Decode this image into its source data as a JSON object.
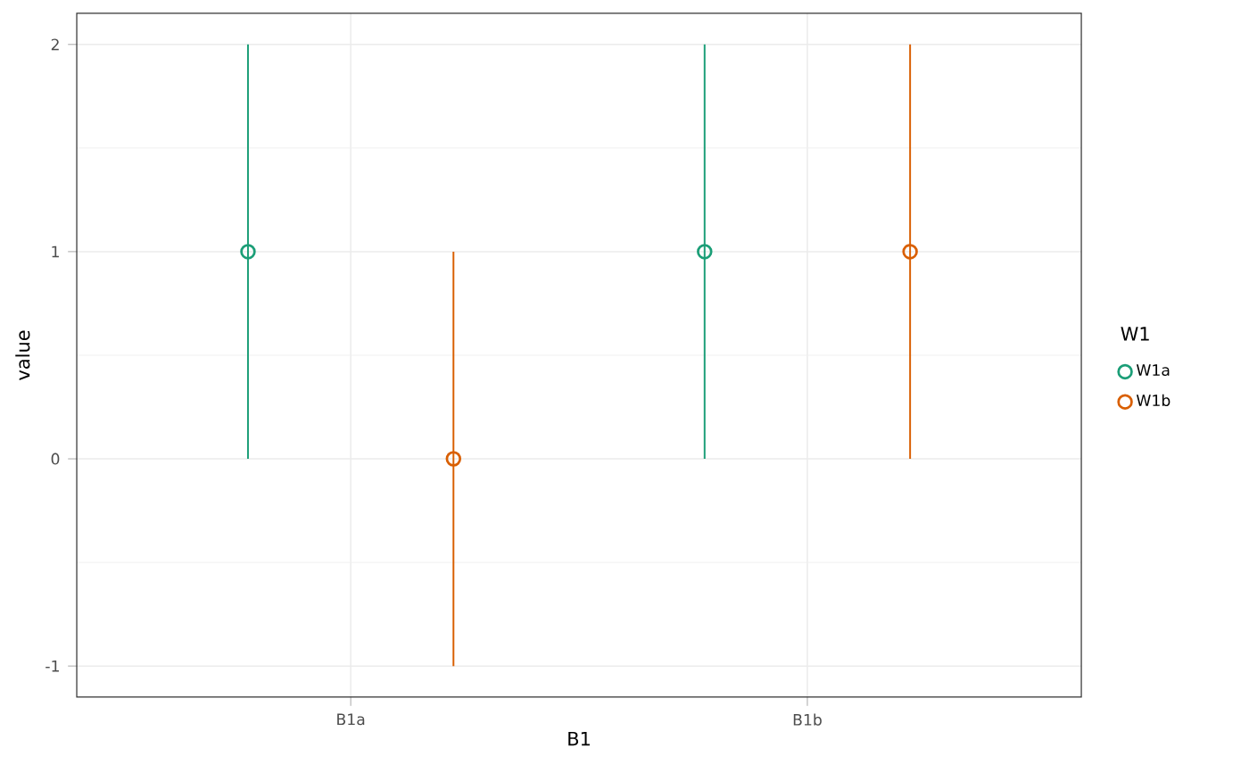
{
  "chart_data": {
    "type": "scatter",
    "xlabel": "B1",
    "ylabel": "value",
    "legend_title": "W1",
    "categories": [
      "B1a",
      "B1b"
    ],
    "series": [
      {
        "name": "W1a",
        "color": "#1b9e77",
        "values": [
          1,
          1
        ],
        "errors": [
          [
            0,
            2
          ],
          [
            0,
            2
          ]
        ]
      },
      {
        "name": "W1b",
        "color": "#d95f02",
        "values": [
          0,
          1
        ],
        "errors": [
          [
            -1,
            1
          ],
          [
            0,
            2
          ]
        ]
      }
    ],
    "ylim": [
      -1.15,
      2.15
    ],
    "yticks": [
      -1,
      0,
      1,
      2
    ],
    "grid": true,
    "legend": "right",
    "marker": "circle"
  }
}
